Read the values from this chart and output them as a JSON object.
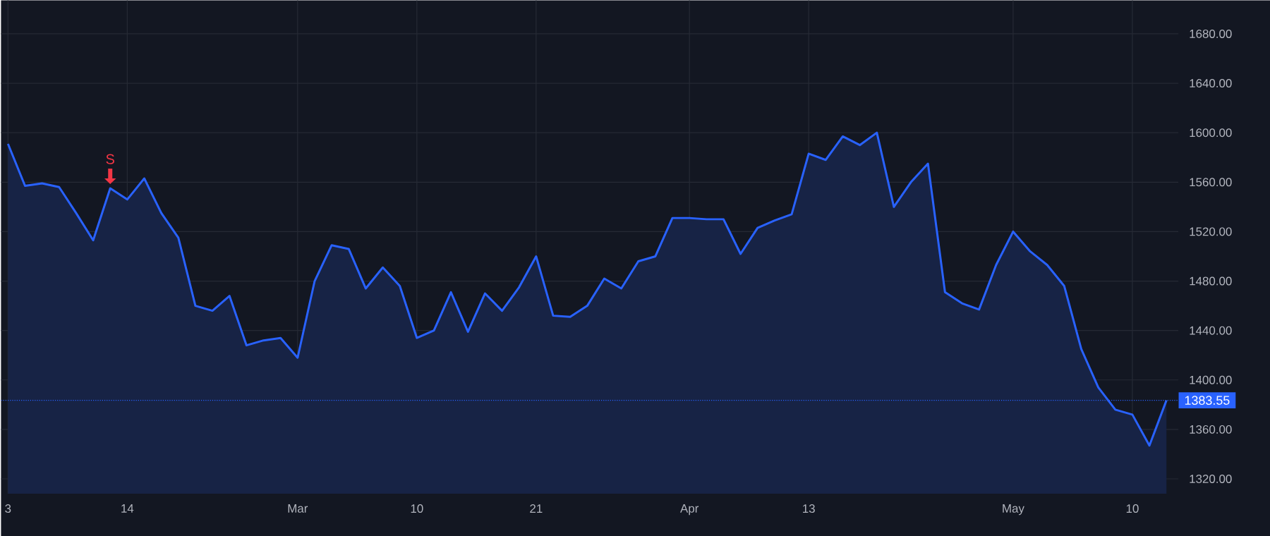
{
  "chart_data": {
    "type": "area",
    "color": "#2962ff",
    "categories": [
      "3",
      null,
      null,
      null,
      null,
      null,
      null,
      "14",
      null,
      null,
      null,
      null,
      null,
      null,
      null,
      null,
      null,
      "Mar",
      null,
      null,
      null,
      null,
      null,
      null,
      "10",
      null,
      null,
      null,
      null,
      null,
      null,
      "21",
      null,
      null,
      null,
      null,
      null,
      null,
      null,
      null,
      "Apr",
      null,
      null,
      null,
      null,
      null,
      null,
      "13",
      null,
      null,
      null,
      null,
      null,
      null,
      null,
      null,
      null,
      null,
      null,
      "May",
      null,
      null,
      null,
      null,
      null,
      null,
      "10",
      null,
      null
    ],
    "values": [
      1591,
      1557,
      1559,
      1556,
      1535,
      1513,
      1555,
      1546,
      1563,
      1535,
      1515,
      1460,
      1456,
      1468,
      1428,
      1432,
      1434,
      1418,
      1480,
      1509,
      1506,
      1474,
      1491,
      1476,
      1434,
      1440,
      1471,
      1439,
      1470,
      1456,
      1475,
      1500,
      1452,
      1451,
      1460,
      1482,
      1474,
      1496,
      1500,
      1531,
      1531,
      1530,
      1530,
      1502,
      1523,
      1529,
      1534,
      1583,
      1578,
      1597,
      1590,
      1600,
      1540,
      1560,
      1575,
      1471,
      1462,
      1457,
      1493,
      1520,
      1504,
      1493,
      1476,
      1425,
      1394,
      1376,
      1372,
      1347,
      1383.55
    ],
    "ylim": [
      1308,
      1707
    ],
    "yticks": [
      {
        "value": 1320,
        "label": "1320.00"
      },
      {
        "value": 1360,
        "label": "1360.00"
      },
      {
        "value": 1400,
        "label": "1400.00"
      },
      {
        "value": 1440,
        "label": "1440.00"
      },
      {
        "value": 1480,
        "label": "1480.00"
      },
      {
        "value": 1520,
        "label": "1520.00"
      },
      {
        "value": 1560,
        "label": "1560.00"
      },
      {
        "value": 1600,
        "label": "1600.00"
      },
      {
        "value": 1640,
        "label": "1640.00"
      },
      {
        "value": 1680,
        "label": "1680.00"
      }
    ],
    "grid": true,
    "ref_lines": [
      {
        "axis": "y",
        "value": 1383.55,
        "label": "1383.55",
        "color": "#2962ff",
        "line_style": "dotted"
      }
    ],
    "annotations": [
      {
        "text": "S",
        "y": 1555
      }
    ]
  }
}
